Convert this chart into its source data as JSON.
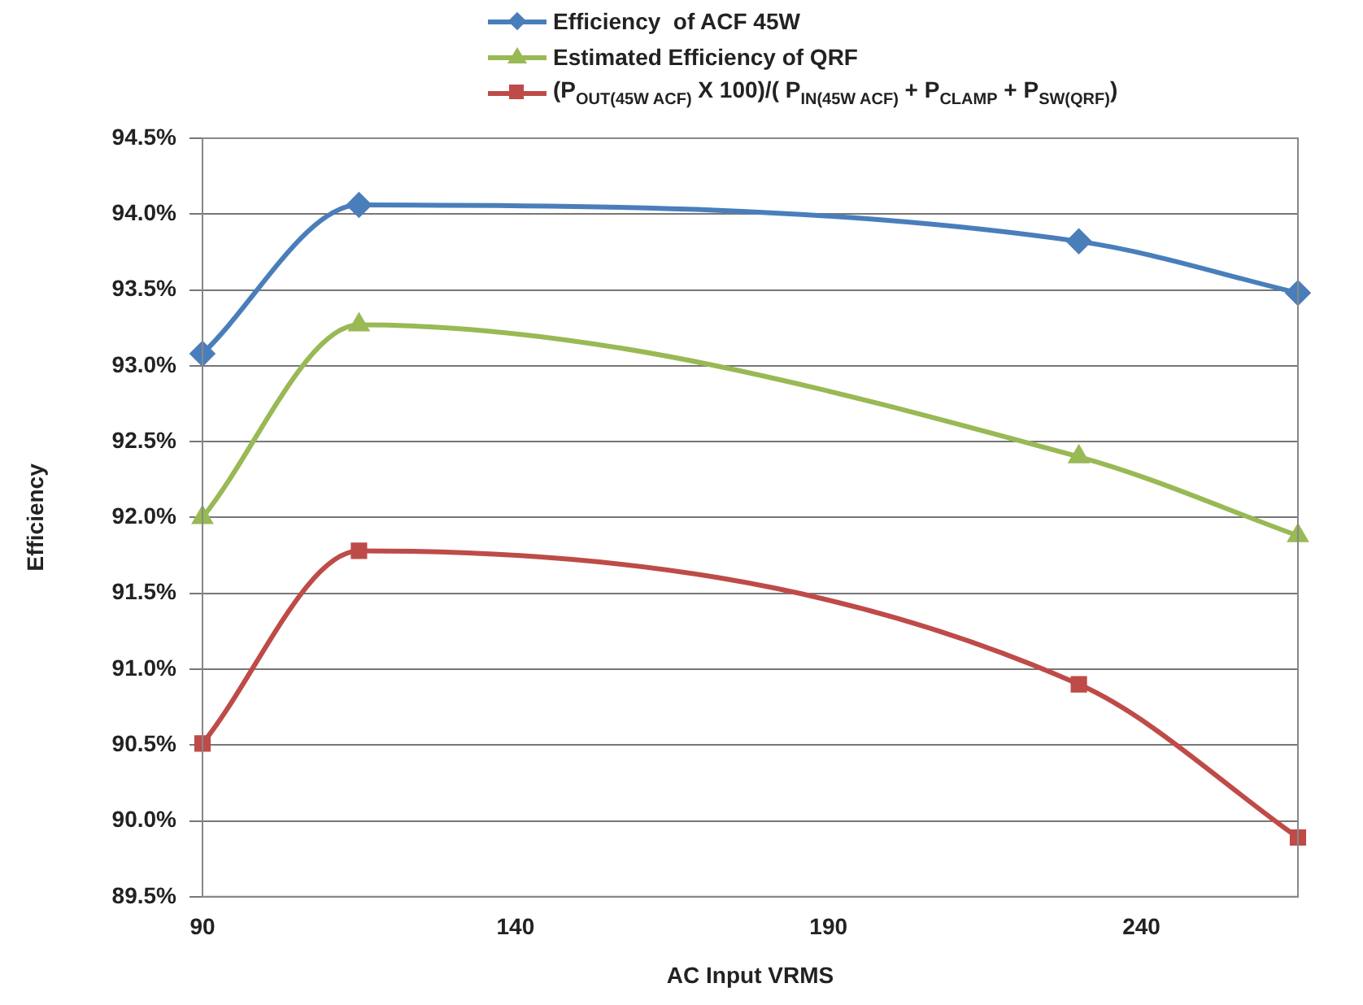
{
  "chart_data": {
    "type": "line",
    "xlabel": "AC Input VRMS",
    "ylabel": "Efficiency",
    "x": [
      90,
      115,
      230,
      265
    ],
    "series": [
      {
        "name": "Efficiency  of ACF 45W",
        "color": "#4a7ebb",
        "marker": "diamond",
        "values": [
          93.08,
          94.06,
          93.82,
          93.48
        ]
      },
      {
        "name": "Estimated Efficiency of QRF",
        "color": "#98b954",
        "marker": "triangle",
        "values": [
          92.0,
          93.27,
          92.4,
          91.88
        ]
      },
      {
        "name": "(P$_{OUT(45W ACF)}$ X 100)/( P$_{IN(45W ACF)}$ + P$_{CLAMP}$ + P$_{SW(QRF)}$)",
        "color": "#be4b48",
        "marker": "square",
        "values": [
          90.51,
          91.78,
          90.9,
          89.89
        ]
      }
    ],
    "xlim": [
      90,
      265
    ],
    "xticks": [
      90,
      140,
      190,
      240
    ],
    "ylim": [
      89.5,
      94.5
    ],
    "yticks": [
      {
        "value": 89.5,
        "label": "89.5%"
      },
      {
        "value": 90.0,
        "label": "90.0%"
      },
      {
        "value": 90.5,
        "label": "90.5%"
      },
      {
        "value": 91.0,
        "label": "91.0%"
      },
      {
        "value": 91.5,
        "label": "91.5%"
      },
      {
        "value": 92.0,
        "label": "92.0%"
      },
      {
        "value": 92.5,
        "label": "92.5%"
      },
      {
        "value": 93.0,
        "label": "93.0%"
      },
      {
        "value": 93.5,
        "label": "93.5%"
      },
      {
        "value": 94.0,
        "label": "94.0%"
      },
      {
        "value": 94.5,
        "label": "94.5%"
      }
    ],
    "grid": "y",
    "legend": "top",
    "line_style": "solid"
  }
}
